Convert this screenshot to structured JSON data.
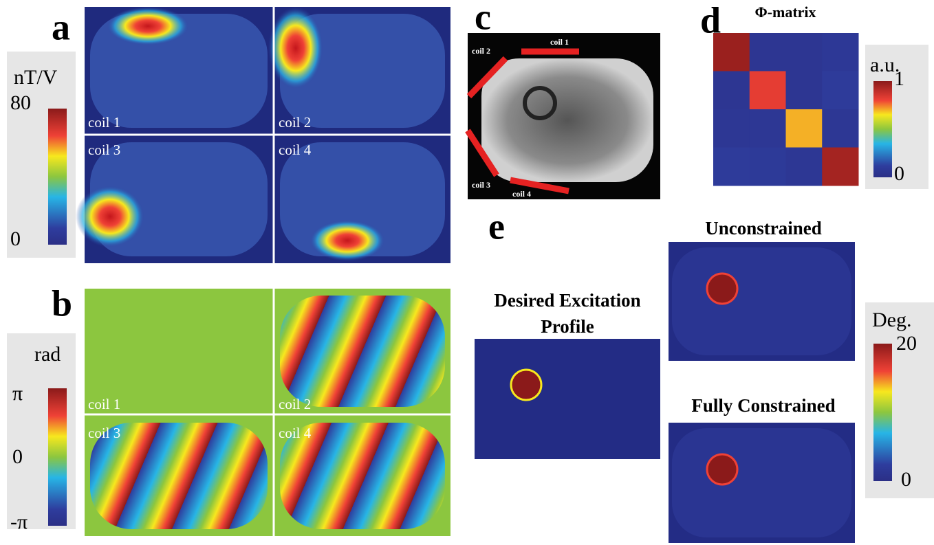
{
  "panels": {
    "a": {
      "label": "a",
      "colorbar": {
        "unit": "nT/V",
        "max": "80",
        "min": "0"
      },
      "tiles": [
        "coil 1",
        "coil 2",
        "coil 3",
        "coil 4"
      ]
    },
    "b": {
      "label": "b",
      "colorbar": {
        "unit": "rad",
        "max": "π",
        "mid": "0",
        "min": "-π"
      },
      "tiles": [
        "coil 1",
        "coil 2",
        "coil 3",
        "coil 4"
      ]
    },
    "c": {
      "label": "c",
      "coils": [
        "coil 1",
        "coil 2",
        "coil 3",
        "coil 4"
      ]
    },
    "d": {
      "label": "d",
      "title": "Φ-matrix",
      "matrix": [
        [
          0.97,
          0.06,
          0.06,
          0.08
        ],
        [
          0.06,
          0.82,
          0.06,
          0.1
        ],
        [
          0.07,
          0.07,
          0.7,
          0.07
        ],
        [
          0.1,
          0.09,
          0.07,
          0.95
        ]
      ],
      "colorbar": {
        "unit": "a.u.",
        "max": "1",
        "min": "0"
      }
    },
    "e": {
      "label": "e",
      "profiles": [
        "Desired Excitation Profile",
        "Unconstrained",
        "Fully Constrained"
      ],
      "colorbar": {
        "unit": "Deg.",
        "max": "20",
        "min": "0"
      }
    }
  }
}
